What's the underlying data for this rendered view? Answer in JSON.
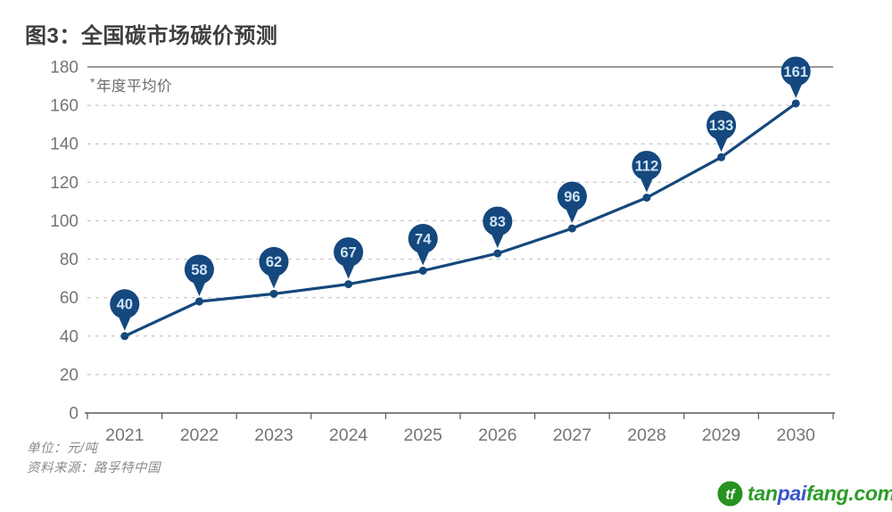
{
  "title": "图3：全国碳市场碳价预测",
  "note": {
    "star": "*",
    "label": "年度平均价"
  },
  "footer": {
    "unit": "单位：元/吨",
    "source": "资料来源：路孚特中国"
  },
  "watermark": {
    "part1": "tan",
    "part2": "pai",
    "part3": "fang.com",
    "logo_monogram": "tf",
    "green": "#2b9b28",
    "blue": "#3a55c8",
    "logo_fill": "#27921f"
  },
  "chart_data": {
    "type": "line",
    "title": "图3：全国碳市场碳价预测",
    "annotation": "*年度平均价",
    "categories": [
      "2021",
      "2022",
      "2023",
      "2024",
      "2025",
      "2026",
      "2027",
      "2028",
      "2029",
      "2030"
    ],
    "values": [
      40,
      58,
      62,
      67,
      74,
      83,
      96,
      112,
      133,
      161
    ],
    "unit": "元/吨",
    "source": "路孚特中国",
    "xlabel": "",
    "ylabel": "",
    "ylim": [
      0,
      180
    ],
    "ytick_step": 20,
    "grid": "horizontal-dashed",
    "legend": false,
    "colors": {
      "line": "#15487c",
      "marker_balloon": "#14487e",
      "balloon_text": "#cfe2f3",
      "grid": "#c6c6c6",
      "axis": "#5a5a5a",
      "tick_text": "#757575"
    }
  }
}
